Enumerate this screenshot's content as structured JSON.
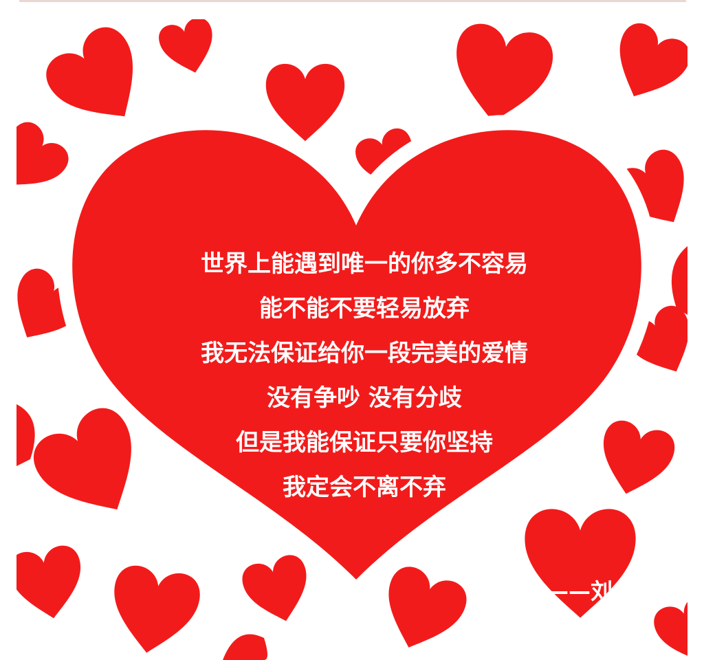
{
  "colors": {
    "heart_red": "#f21b1b",
    "background": "#ffffff",
    "text": "#ffffff"
  },
  "poem": {
    "lines": [
      "世界上能遇到唯一的你多不容易",
      "能不能不要轻易放弃",
      "我无法保证给你一段完美的爱情",
      "没有争吵 没有分歧",
      "但是我能保证只要你坚持",
      "我定会不离不弃"
    ],
    "signature": "——刘金昊"
  }
}
